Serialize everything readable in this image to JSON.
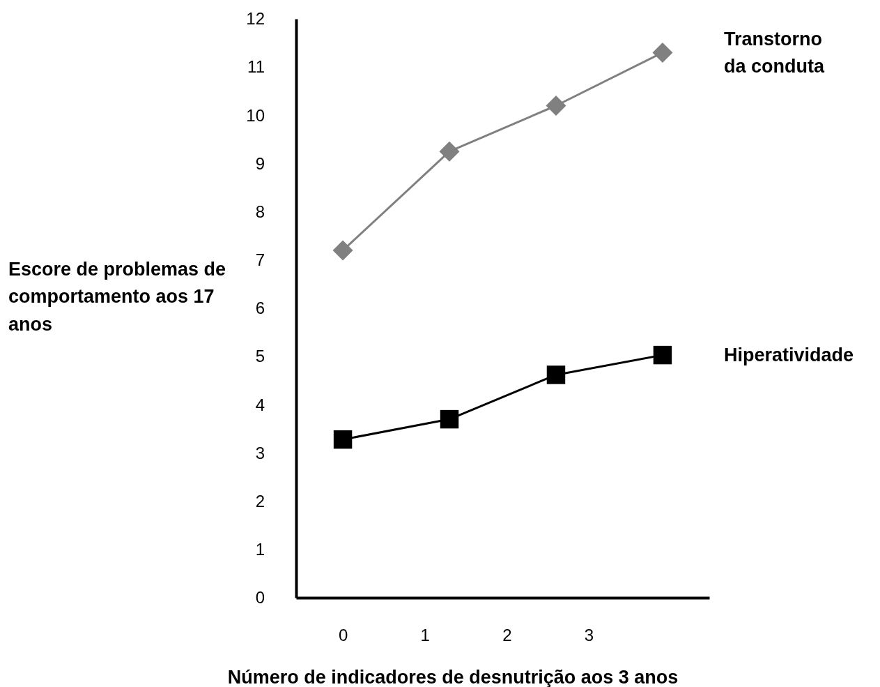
{
  "chart_data": {
    "type": "line",
    "xlabel": "Número de indicadores de desnutrição aos 3 anos",
    "ylabel": "Escore de problemas de comportamento aos 17 anos",
    "x": [
      0,
      1.3,
      2.6,
      3.9
    ],
    "xlim": [
      -0.57,
      4.47
    ],
    "xticks": [
      0,
      1,
      2,
      3
    ],
    "ylim": [
      0,
      12
    ],
    "yticks": [
      0,
      1,
      2,
      3,
      4,
      5,
      6,
      7,
      8,
      9,
      10,
      11,
      12
    ],
    "grid": false,
    "legend": false,
    "series": [
      {
        "name": "Transtorno da conduta",
        "color": "#808080",
        "marker": "diamond",
        "values": [
          7.2,
          9.25,
          10.2,
          11.3
        ]
      },
      {
        "name": "Hiperatividade",
        "color": "#000000",
        "marker": "square",
        "values": [
          3.28,
          3.7,
          4.62,
          5.03
        ]
      }
    ]
  }
}
